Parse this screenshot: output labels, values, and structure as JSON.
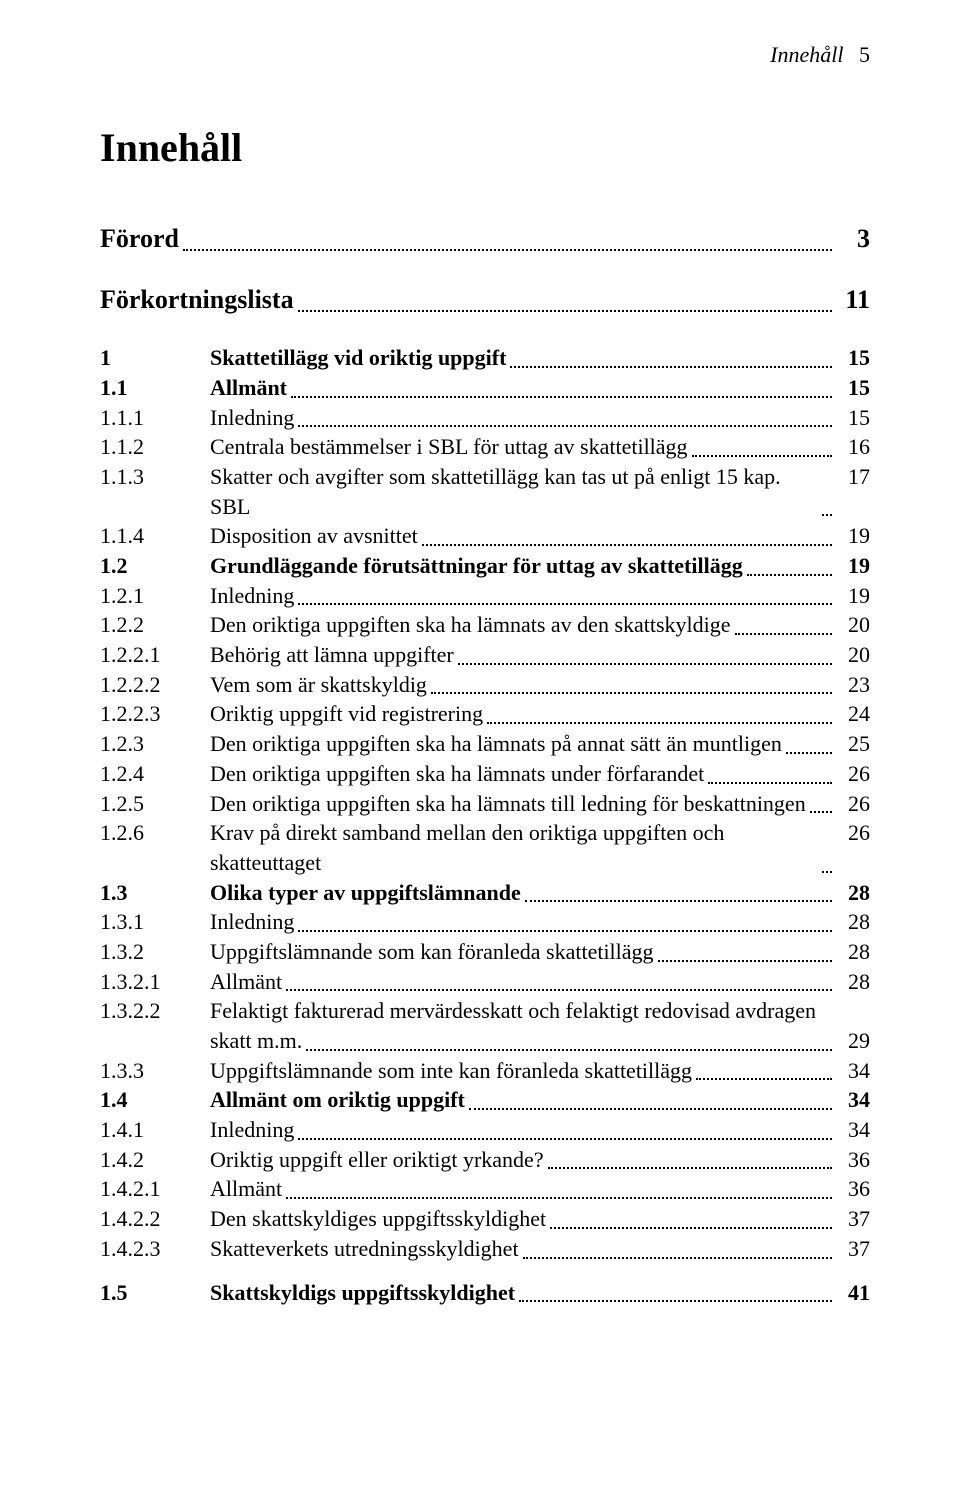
{
  "running_header": {
    "label": "Innehåll",
    "page": "5"
  },
  "title": "Innehåll",
  "front": [
    {
      "title": "Förord",
      "page": "3"
    },
    {
      "title": "Förkortningslista",
      "page": "11"
    }
  ],
  "toc": [
    {
      "num": "1",
      "title": "Skattetillägg vid oriktig uppgift",
      "page": "15",
      "bold": true,
      "gap": true
    },
    {
      "num": "1.1",
      "title": "Allmänt",
      "page": "15",
      "bold": true
    },
    {
      "num": "1.1.1",
      "title": "Inledning",
      "page": "15"
    },
    {
      "num": "1.1.2",
      "title": "Centrala bestämmelser i SBL för uttag av skattetillägg",
      "page": "16"
    },
    {
      "num": "1.1.3",
      "title": "Skatter och avgifter som skattetillägg kan tas ut på enligt 15 kap. SBL",
      "page": "17"
    },
    {
      "num": "1.1.4",
      "title": "Disposition av avsnittet",
      "page": "19"
    },
    {
      "num": "1.2",
      "title": "Grundläggande förutsättningar för uttag av skattetillägg",
      "page": "19",
      "bold": true
    },
    {
      "num": "1.2.1",
      "title": "Inledning",
      "page": "19"
    },
    {
      "num": "1.2.2",
      "title": "Den oriktiga uppgiften ska ha lämnats av den skattskyldige",
      "page": "20"
    },
    {
      "num": "1.2.2.1",
      "title": "Behörig att lämna uppgifter",
      "page": "20"
    },
    {
      "num": "1.2.2.2",
      "title": "Vem som är skattskyldig",
      "page": "23"
    },
    {
      "num": "1.2.2.3",
      "title": "Oriktig uppgift vid registrering",
      "page": "24"
    },
    {
      "num": "1.2.3",
      "title": "Den oriktiga uppgiften ska ha lämnats på annat sätt än muntligen",
      "page": "25"
    },
    {
      "num": "1.2.4",
      "title": "Den oriktiga uppgiften ska ha lämnats under förfarandet",
      "page": "26"
    },
    {
      "num": "1.2.5",
      "title": "Den oriktiga uppgiften ska ha lämnats till ledning för beskattningen",
      "page": "26"
    },
    {
      "num": "1.2.6",
      "title": "Krav på direkt samband mellan den oriktiga uppgiften och skatteuttaget",
      "page": "26"
    },
    {
      "num": "1.3",
      "title": "Olika typer av uppgiftslämnande",
      "page": "28",
      "bold": true
    },
    {
      "num": "1.3.1",
      "title": "Inledning",
      "page": "28"
    },
    {
      "num": "1.3.2",
      "title": "Uppgiftslämnande som kan föranleda skattetillägg",
      "page": "28"
    },
    {
      "num": "1.3.2.1",
      "title": "Allmänt",
      "page": "28"
    },
    {
      "num": "1.3.2.2",
      "title_line1": "Felaktigt fakturerad mervärdesskatt och felaktigt redovisad avdragen",
      "title_line2": "skatt m.m.",
      "page": "29",
      "wrap": true
    },
    {
      "num": "1.3.3",
      "title": "Uppgiftslämnande som inte kan föranleda skattetillägg",
      "page": "34"
    },
    {
      "num": "1.4",
      "title": "Allmänt om oriktig uppgift",
      "page": "34",
      "bold": true
    },
    {
      "num": "1.4.1",
      "title": "Inledning",
      "page": "34"
    },
    {
      "num": "1.4.2",
      "title": "Oriktig uppgift eller oriktigt yrkande?",
      "page": "36"
    },
    {
      "num": "1.4.2.1",
      "title": "Allmänt",
      "page": "36"
    },
    {
      "num": "1.4.2.2",
      "title": "Den skattskyldiges uppgiftsskyldighet",
      "page": "37"
    },
    {
      "num": "1.4.2.3",
      "title": "Skatteverkets utredningsskyldighet",
      "page": "37"
    },
    {
      "num": "1.5",
      "title": "Skattskyldigs uppgiftsskyldighet",
      "page": "41",
      "bold": true,
      "gap": true
    }
  ]
}
